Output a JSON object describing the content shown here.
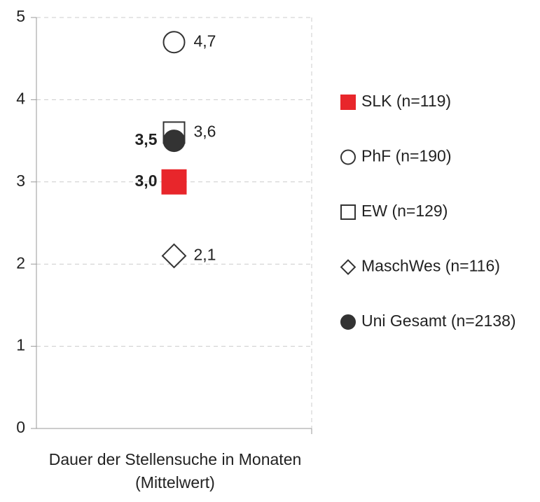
{
  "chart_data": {
    "type": "dot",
    "categories": [
      "Dauer der Stellensuche in Monaten (Mittelwert)"
    ],
    "ylim": [
      0,
      5
    ],
    "yticks": [
      0,
      1,
      2,
      3,
      4,
      5
    ],
    "grid": true,
    "legend": "right",
    "series": [
      {
        "name": "SLK (n=119)",
        "color": "#e8262b",
        "marker": "square",
        "filled": true,
        "label_side": "left",
        "label_bold": true,
        "values": [
          3.0
        ],
        "value_labels": [
          "3,0"
        ]
      },
      {
        "name": "PhF (n=190)",
        "color": "#333333",
        "marker": "circle",
        "filled": false,
        "label_side": "right",
        "label_bold": false,
        "values": [
          4.7
        ],
        "value_labels": [
          "4,7"
        ]
      },
      {
        "name": "EW (n=129)",
        "color": "#333333",
        "marker": "square",
        "filled": false,
        "label_side": "right",
        "label_bold": false,
        "values": [
          3.6
        ],
        "value_labels": [
          "3,6"
        ]
      },
      {
        "name": "MaschWes (n=116)",
        "color": "#333333",
        "marker": "diamond",
        "filled": false,
        "label_side": "right",
        "label_bold": false,
        "values": [
          2.1
        ],
        "value_labels": [
          "2,1"
        ]
      },
      {
        "name": "Uni Gesamt (n=2138)",
        "color": "#333333",
        "marker": "circle",
        "filled": true,
        "label_side": "left",
        "label_bold": true,
        "values": [
          3.5
        ],
        "value_labels": [
          "3,5"
        ]
      }
    ]
  }
}
